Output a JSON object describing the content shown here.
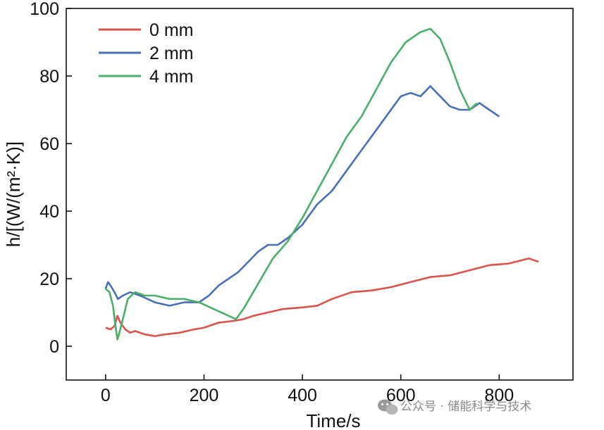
{
  "chart_data": {
    "type": "line",
    "title": "",
    "xlabel": "Time/s",
    "ylabel": "h/[(W/(m²·K)]",
    "xlim": [
      -80,
      950
    ],
    "ylim": [
      -10,
      100
    ],
    "xticks": [
      "0",
      "200",
      "400",
      "600",
      "800"
    ],
    "yticks": [
      "0",
      "20",
      "40",
      "60",
      "80",
      "100"
    ],
    "grid": false,
    "legend_position": "top-left",
    "series": [
      {
        "name": "0 mm",
        "color": "#d9534f",
        "x": [
          0,
          10,
          18,
          24,
          30,
          40,
          50,
          60,
          80,
          100,
          120,
          150,
          180,
          200,
          230,
          260,
          280,
          300,
          330,
          360,
          400,
          430,
          460,
          500,
          540,
          580,
          620,
          660,
          700,
          740,
          780,
          820,
          860,
          880
        ],
        "y": [
          5.5,
          5,
          6,
          9,
          7,
          5,
          4,
          4.5,
          3.5,
          3,
          3.5,
          4,
          5,
          5.5,
          7,
          7.5,
          8,
          9,
          10,
          11,
          11.5,
          12,
          14,
          16,
          16.5,
          17.5,
          19,
          20.5,
          21,
          22.5,
          24,
          24.5,
          26,
          25
        ]
      },
      {
        "name": "2 mm",
        "color": "#4a6fb5",
        "x": [
          0,
          5,
          10,
          18,
          25,
          35,
          50,
          70,
          100,
          130,
          160,
          190,
          210,
          230,
          250,
          270,
          290,
          310,
          330,
          350,
          370,
          400,
          430,
          460,
          490,
          520,
          550,
          580,
          600,
          620,
          640,
          660,
          680,
          700,
          720,
          740,
          760,
          780,
          800
        ],
        "y": [
          17,
          19,
          18,
          16,
          14,
          15,
          16,
          15,
          13,
          12,
          13,
          13,
          15,
          18,
          20,
          22,
          25,
          28,
          30,
          30,
          32,
          36,
          42,
          46,
          52,
          58,
          64,
          70,
          74,
          75,
          74,
          77,
          74,
          71,
          70,
          70,
          72,
          70,
          68
        ]
      },
      {
        "name": "4 mm",
        "color": "#4cae6a",
        "x": [
          0,
          8,
          15,
          20,
          24,
          28,
          35,
          45,
          60,
          80,
          100,
          130,
          160,
          190,
          220,
          250,
          265,
          280,
          300,
          320,
          340,
          370,
          400,
          430,
          460,
          490,
          520,
          550,
          580,
          610,
          640,
          660,
          680,
          700,
          720,
          740,
          755
        ],
        "y": [
          17,
          16,
          12,
          6,
          2,
          4,
          8,
          14,
          16,
          15,
          15,
          14,
          14,
          13,
          11,
          9,
          8,
          11,
          16,
          21,
          26,
          31,
          38,
          46,
          54,
          62,
          68,
          76,
          84,
          90,
          93,
          94,
          91,
          84,
          76,
          70,
          72
        ]
      }
    ]
  },
  "watermark": {
    "text": "公众号 · 储能科学与技术",
    "icon": "wechat-icon"
  }
}
